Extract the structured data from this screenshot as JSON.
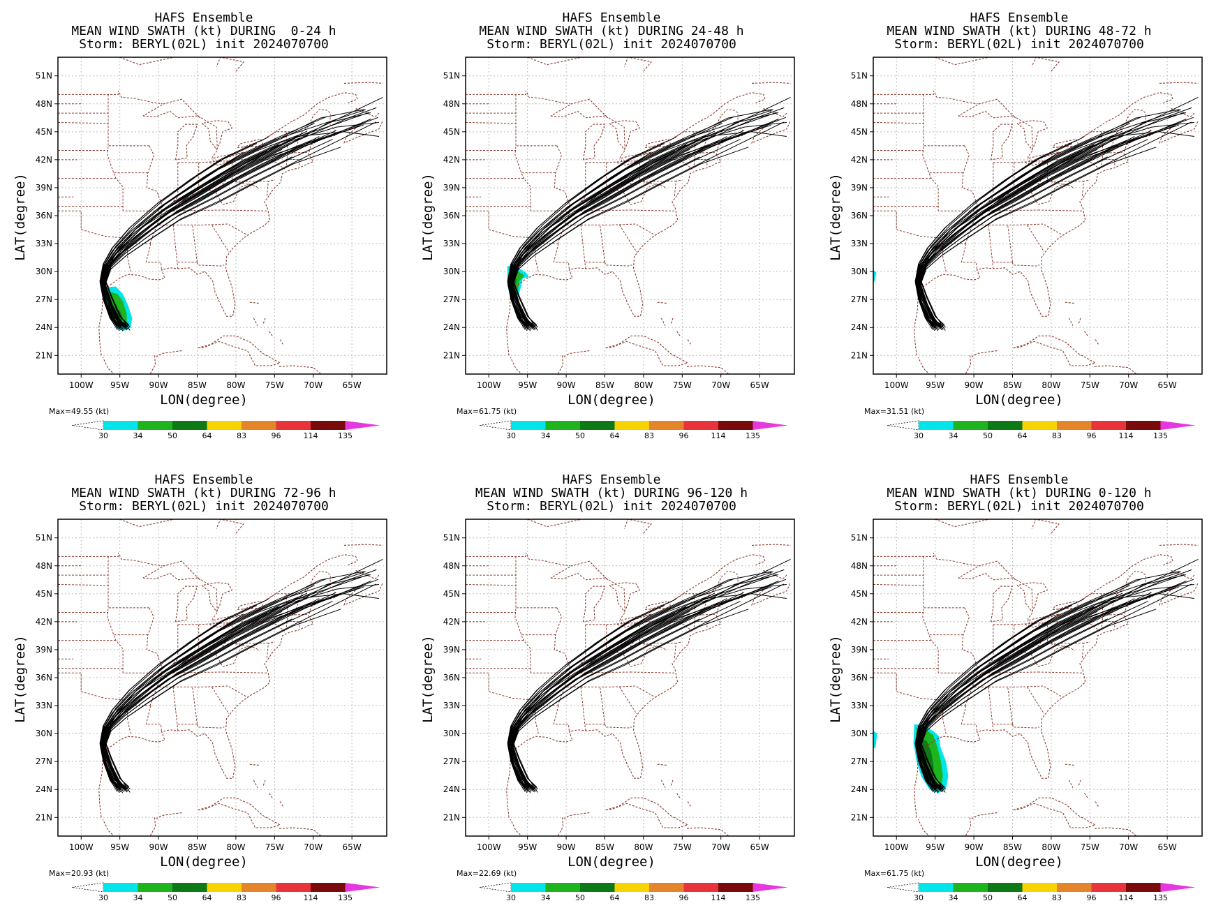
{
  "colors": {
    "coast": "#8b3a2a",
    "track": "#000000",
    "grid": "#bbbbbb",
    "bins": [
      "#ffffff",
      "#00e5ea",
      "#1eb41e",
      "#0e7a17",
      "#f7d300",
      "#e5852b",
      "#e8333b",
      "#7b0a0a",
      "#e637e0"
    ]
  },
  "chart_data": [
    {
      "type": "heatmap",
      "title": [
        "HAFS Ensemble",
        "MEAN WIND SWATH (kt) DURING  0-24 h",
        "Storm: BERYL(02L) init 2024070700"
      ],
      "xlabel": "LON(degree)",
      "ylabel": "LAT(degree)",
      "xlim": [
        -103,
        -60.5
      ],
      "ylim": [
        19,
        53
      ],
      "xticks": [
        "100W",
        "95W",
        "90W",
        "85W",
        "80W",
        "75W",
        "70W",
        "65W"
      ],
      "yticks": [
        "21N",
        "24N",
        "27N",
        "30N",
        "33N",
        "36N",
        "39N",
        "42N",
        "45N",
        "48N",
        "51N"
      ],
      "max_label": "Max=49.55 (kt)",
      "colorbar": [
        "30",
        "34",
        "50",
        "64",
        "83",
        "96",
        "114",
        "135"
      ],
      "swath": "p1"
    },
    {
      "type": "heatmap",
      "title": [
        "HAFS Ensemble",
        "MEAN WIND SWATH (kt) DURING 24-48 h",
        "Storm: BERYL(02L) init 2024070700"
      ],
      "xlabel": "LON(degree)",
      "ylabel": "LAT(degree)",
      "xlim": [
        -103,
        -60.5
      ],
      "ylim": [
        19,
        53
      ],
      "xticks": [
        "100W",
        "95W",
        "90W",
        "85W",
        "80W",
        "75W",
        "70W",
        "65W"
      ],
      "yticks": [
        "21N",
        "24N",
        "27N",
        "30N",
        "33N",
        "36N",
        "39N",
        "42N",
        "45N",
        "48N",
        "51N"
      ],
      "max_label": "Max=61.75 (kt)",
      "colorbar": [
        "30",
        "34",
        "50",
        "64",
        "83",
        "96",
        "114",
        "135"
      ],
      "swath": "p2"
    },
    {
      "type": "heatmap",
      "title": [
        "HAFS Ensemble",
        "MEAN WIND SWATH (kt) DURING 48-72 h",
        "Storm: BERYL(02L) init 2024070700"
      ],
      "xlabel": "LON(degree)",
      "ylabel": "LAT(degree)",
      "xlim": [
        -103,
        -60.5
      ],
      "ylim": [
        19,
        53
      ],
      "xticks": [
        "100W",
        "95W",
        "90W",
        "85W",
        "80W",
        "75W",
        "70W",
        "65W"
      ],
      "yticks": [
        "21N",
        "24N",
        "27N",
        "30N",
        "33N",
        "36N",
        "39N",
        "42N",
        "45N",
        "48N",
        "51N"
      ],
      "max_label": "Max=31.51 (kt)",
      "colorbar": [
        "30",
        "34",
        "50",
        "64",
        "83",
        "96",
        "114",
        "135"
      ],
      "swath": "p3"
    },
    {
      "type": "heatmap",
      "title": [
        "HAFS Ensemble",
        "MEAN WIND SWATH (kt) DURING 72-96 h",
        "Storm: BERYL(02L) init 2024070700"
      ],
      "xlabel": "LON(degree)",
      "ylabel": "LAT(degree)",
      "xlim": [
        -103,
        -60.5
      ],
      "ylim": [
        19,
        53
      ],
      "xticks": [
        "100W",
        "95W",
        "90W",
        "85W",
        "80W",
        "75W",
        "70W",
        "65W"
      ],
      "yticks": [
        "21N",
        "24N",
        "27N",
        "30N",
        "33N",
        "36N",
        "39N",
        "42N",
        "45N",
        "48N",
        "51N"
      ],
      "max_label": "Max=20.93 (kt)",
      "colorbar": [
        "30",
        "34",
        "50",
        "64",
        "83",
        "96",
        "114",
        "135"
      ],
      "swath": "none"
    },
    {
      "type": "heatmap",
      "title": [
        "HAFS Ensemble",
        "MEAN WIND SWATH (kt) DURING 96-120 h",
        "Storm: BERYL(02L) init 2024070700"
      ],
      "xlabel": "LON(degree)",
      "ylabel": "LAT(degree)",
      "xlim": [
        -103,
        -60.5
      ],
      "ylim": [
        19,
        53
      ],
      "xticks": [
        "100W",
        "95W",
        "90W",
        "85W",
        "80W",
        "75W",
        "70W",
        "65W"
      ],
      "yticks": [
        "21N",
        "24N",
        "27N",
        "30N",
        "33N",
        "36N",
        "39N",
        "42N",
        "45N",
        "48N",
        "51N"
      ],
      "max_label": "Max=22.69 (kt)",
      "colorbar": [
        "30",
        "34",
        "50",
        "64",
        "83",
        "96",
        "114",
        "135"
      ],
      "swath": "none"
    },
    {
      "type": "heatmap",
      "title": [
        "HAFS Ensemble",
        "MEAN WIND SWATH (kt) DURING 0-120 h",
        "Storm: BERYL(02L) init 2024070700"
      ],
      "xlabel": "LON(degree)",
      "ylabel": "LAT(degree)",
      "xlim": [
        -103,
        -60.5
      ],
      "ylim": [
        19,
        53
      ],
      "xticks": [
        "100W",
        "95W",
        "90W",
        "85W",
        "80W",
        "75W",
        "70W",
        "65W"
      ],
      "yticks": [
        "21N",
        "24N",
        "27N",
        "30N",
        "33N",
        "36N",
        "39N",
        "42N",
        "45N",
        "48N",
        "51N"
      ],
      "max_label": "Max=61.75 (kt)",
      "colorbar": [
        "30",
        "34",
        "50",
        "64",
        "83",
        "96",
        "114",
        "135"
      ],
      "swath": "p6"
    }
  ]
}
